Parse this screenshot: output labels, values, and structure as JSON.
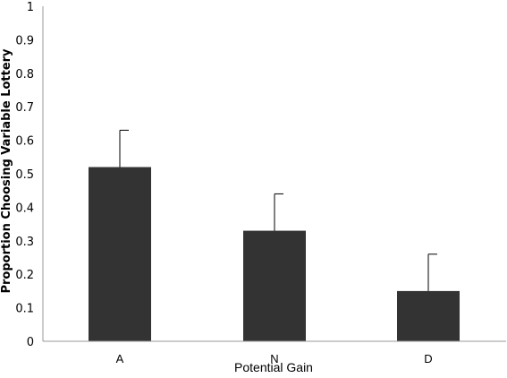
{
  "chart_data": {
    "type": "bar",
    "categories": [
      "A",
      "N",
      "D"
    ],
    "values": [
      0.52,
      0.33,
      0.15
    ],
    "error_upper": [
      0.11,
      0.11,
      0.11
    ],
    "xlabel": "Potential Gain",
    "ylabel": "Proportion Choosing Variable Lottery",
    "ylim": [
      0,
      1
    ],
    "yticks": [
      "0",
      "0.1",
      "0.2",
      "0.3",
      "0.4",
      "0.5",
      "0.6",
      "0.7",
      "0.8",
      "0.9",
      "1"
    ],
    "grid": false,
    "bar_color": "#333333"
  }
}
